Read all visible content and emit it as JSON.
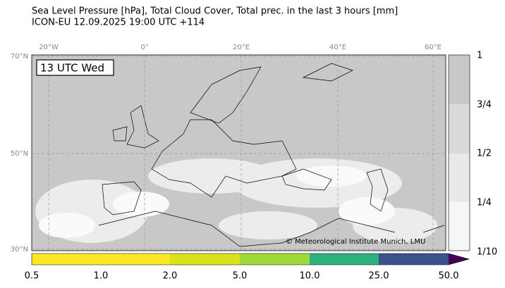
{
  "header": {
    "title_line1": "Sea Level Pressure [hPa], Total Cloud Cover, Total prec. in the last 3 hours [mm]",
    "title_line2": "ICON-EU 12.09.2025 19:00 UTC +114"
  },
  "map": {
    "lon_labels": [
      "20°W",
      "0°",
      "20°E",
      "40°E",
      "60°E"
    ],
    "lat_labels": [
      "70°N",
      "50°N",
      "30°N"
    ],
    "time_label": "13 UTC Wed",
    "credit": "© Meteorological Institute Munich, LMU"
  },
  "cloud_colorbar": {
    "labels": [
      "1",
      "3/4",
      "1/2",
      "1/4",
      "1/10"
    ]
  },
  "precip_colorbar": {
    "labels": [
      "0.5",
      "1.0",
      "2.0",
      "5.0",
      "10.0",
      "25.0",
      "50.0"
    ]
  }
}
